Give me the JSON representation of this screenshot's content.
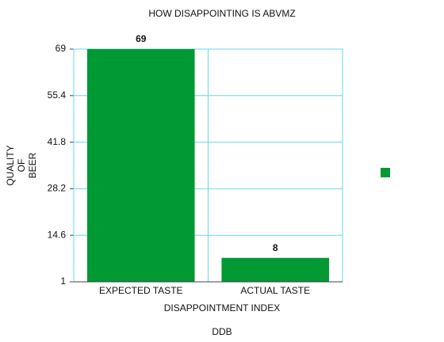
{
  "chart_data": {
    "type": "bar",
    "title": "HOW DISAPPOINTING IS ABVMZ",
    "x_label": "DISAPPOINTMENT INDEX",
    "y_label": [
      "QUALITY",
      "OF",
      "BEER"
    ],
    "caption": "DDB",
    "categories": [
      "EXPECTED TASTE",
      "ACTUAL TASTE"
    ],
    "values": [
      69,
      8
    ],
    "color": "#009933",
    "ylim": [
      1,
      69
    ],
    "yticks": [
      1,
      14.6,
      28.2,
      41.8,
      55.4,
      69
    ],
    "grid": true,
    "legend": "right"
  }
}
